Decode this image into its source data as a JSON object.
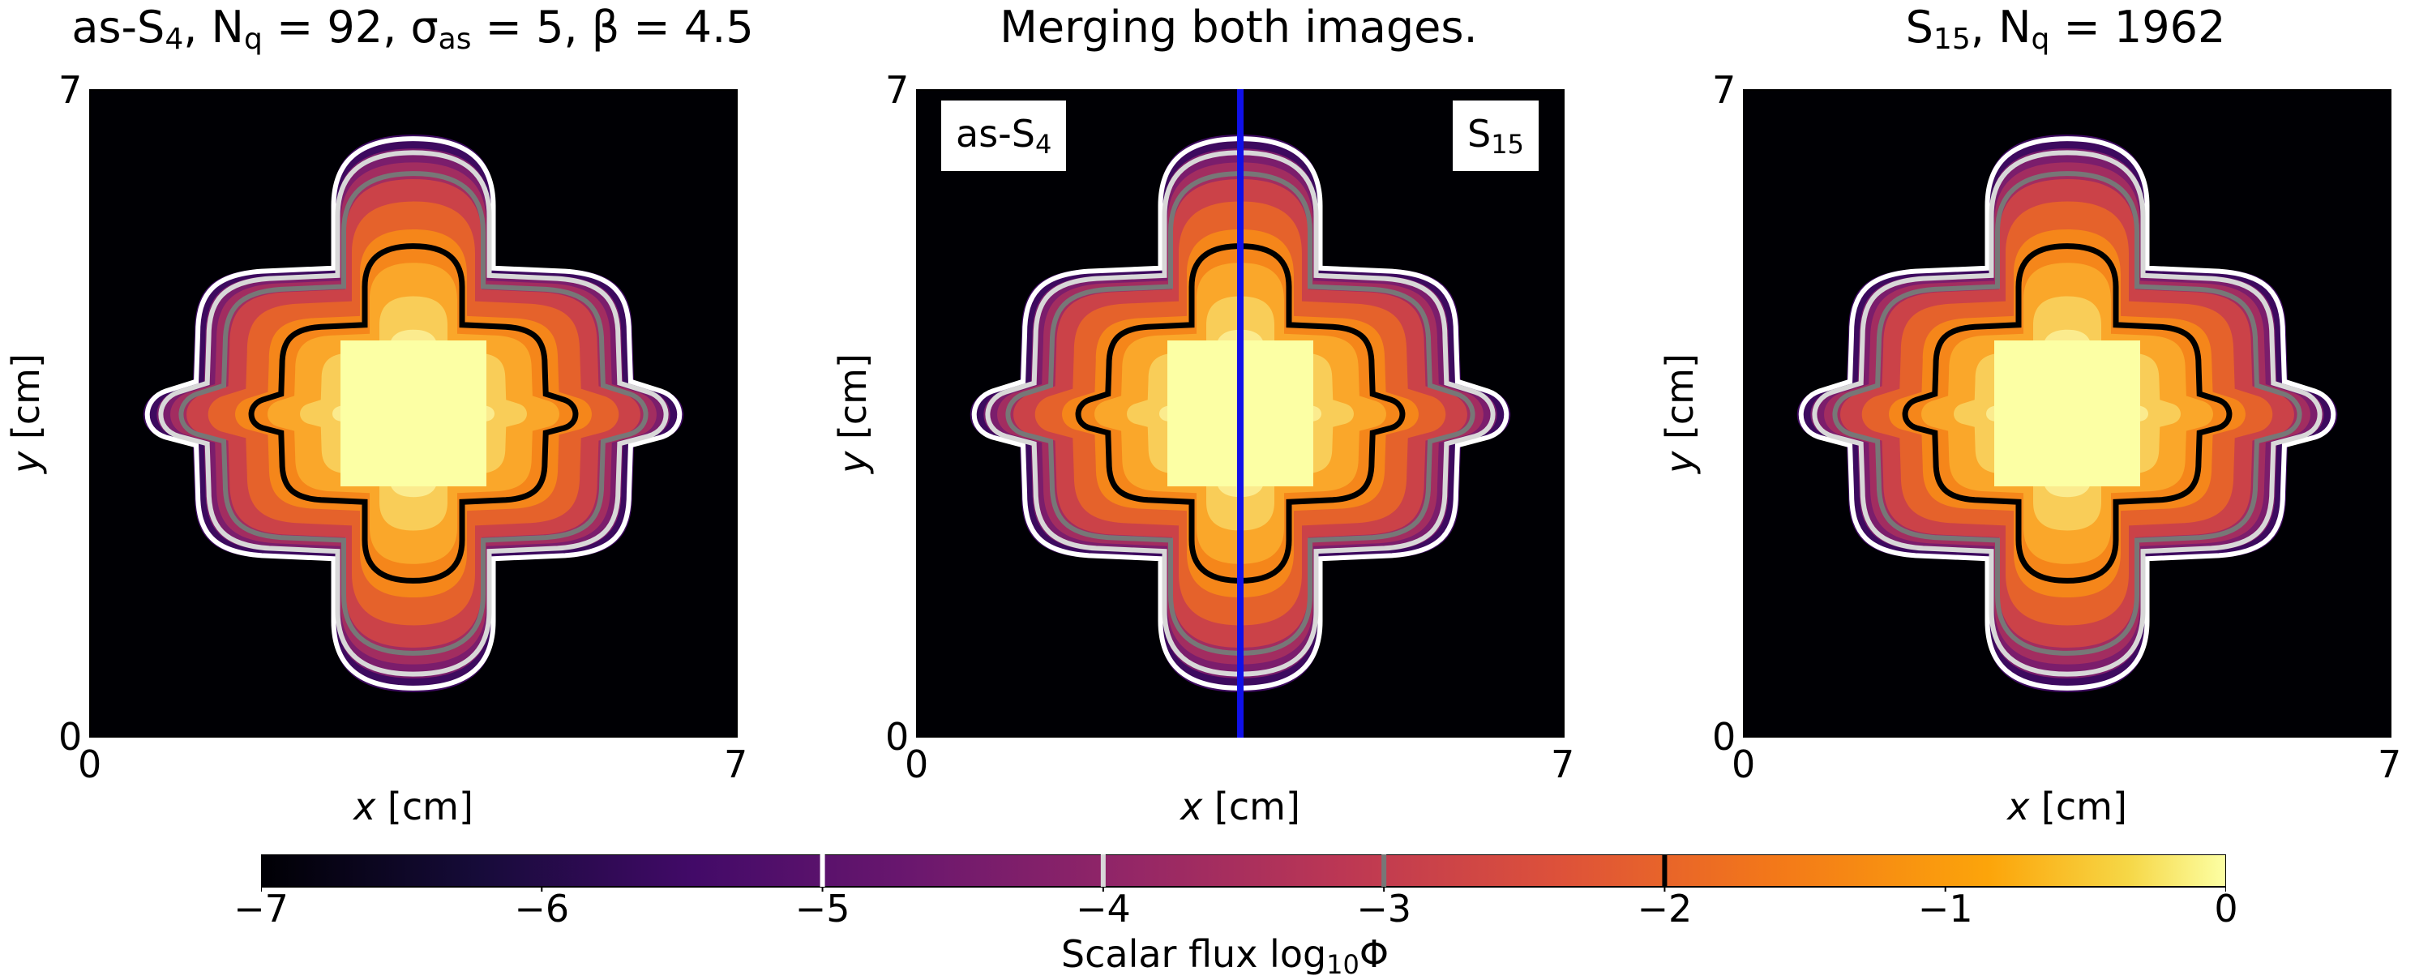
{
  "chart_data": [
    {
      "type": "heatmap",
      "title_parts": [
        "as-S",
        "4",
        ", N",
        "q",
        " = 92, σ",
        "as",
        " = 5, β = 4.5"
      ],
      "xlabel_var": "x",
      "xlabel_unit": "[cm]",
      "ylabel_var": "y",
      "ylabel_unit": "[cm]",
      "xlim": [
        0,
        7
      ],
      "ylim": [
        0,
        7
      ],
      "x_ticks": [
        "0",
        "7"
      ],
      "y_ticks": [
        "0",
        "7"
      ]
    },
    {
      "type": "heatmap",
      "title": "Merging both images.",
      "xlabel_var": "x",
      "xlabel_unit": "[cm]",
      "ylabel_var": "y",
      "ylabel_unit": "[cm]",
      "xlim": [
        0,
        7
      ],
      "ylim": [
        0,
        7
      ],
      "x_ticks": [
        "0",
        "7"
      ],
      "y_ticks": [
        "0",
        "7"
      ],
      "annotations": {
        "left": {
          "base": "as-S",
          "sub": "4"
        },
        "right": {
          "base": "S",
          "sub": "15"
        }
      },
      "divider_x": 3.5,
      "divider_color": "#1010e8"
    },
    {
      "type": "heatmap",
      "title_parts": [
        "S",
        "15",
        ", N",
        "q",
        " = 1962"
      ],
      "xlabel_var": "x",
      "xlabel_unit": "[cm]",
      "ylabel_var": "y",
      "ylabel_unit": "[cm]",
      "xlim": [
        0,
        7
      ],
      "ylim": [
        0,
        7
      ],
      "x_ticks": [
        "0",
        "7"
      ],
      "y_ticks": [
        "0",
        "7"
      ]
    }
  ],
  "colorbar": {
    "label_base": "Scalar flux log",
    "label_sub": "10",
    "label_tail": "Φ",
    "range": [
      -7,
      0
    ],
    "ticks": [
      "−7",
      "−6",
      "−5",
      "−4",
      "−3",
      "−2",
      "−1",
      "0"
    ],
    "tick_values": [
      -7,
      -6,
      -5,
      -4,
      -3,
      -2,
      -1,
      0
    ],
    "contour_levels": [
      {
        "value": -5,
        "color": "#ffffff"
      },
      {
        "value": -4,
        "color": "#d8d8d8"
      },
      {
        "value": -3,
        "color": "#777777"
      },
      {
        "value": -2,
        "color": "#000000"
      }
    ],
    "colormap": "inferno"
  }
}
